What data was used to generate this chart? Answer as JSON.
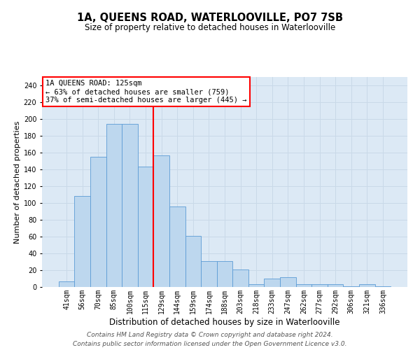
{
  "title": "1A, QUEENS ROAD, WATERLOOVILLE, PO7 7SB",
  "subtitle": "Size of property relative to detached houses in Waterlooville",
  "xlabel": "Distribution of detached houses by size in Waterlooville",
  "ylabel": "Number of detached properties",
  "categories": [
    "41sqm",
    "56sqm",
    "70sqm",
    "85sqm",
    "100sqm",
    "115sqm",
    "129sqm",
    "144sqm",
    "159sqm",
    "174sqm",
    "188sqm",
    "203sqm",
    "218sqm",
    "233sqm",
    "247sqm",
    "262sqm",
    "277sqm",
    "292sqm",
    "306sqm",
    "321sqm",
    "336sqm"
  ],
  "values": [
    7,
    108,
    155,
    194,
    194,
    143,
    157,
    96,
    61,
    31,
    31,
    21,
    3,
    10,
    12,
    3,
    3,
    3,
    1,
    3,
    1
  ],
  "bar_color": "#bdd7ee",
  "bar_edge_color": "#5b9bd5",
  "vline_color": "#ff0000",
  "vline_x_index": 5.5,
  "annotation_title": "1A QUEENS ROAD: 125sqm",
  "annotation_line1": "← 63% of detached houses are smaller (759)",
  "annotation_line2": "37% of semi-detached houses are larger (445) →",
  "annotation_box_edge_color": "#ff0000",
  "annotation_box_face_color": "#ffffff",
  "ylim": [
    0,
    250
  ],
  "yticks": [
    0,
    20,
    40,
    60,
    80,
    100,
    120,
    140,
    160,
    180,
    200,
    220,
    240
  ],
  "footer_line1": "Contains HM Land Registry data © Crown copyright and database right 2024.",
  "footer_line2": "Contains public sector information licensed under the Open Government Licence v3.0.",
  "grid_color": "#c9d9e8",
  "background_color": "#dce9f5",
  "title_fontsize": 10.5,
  "subtitle_fontsize": 8.5,
  "tick_fontsize": 7,
  "xlabel_fontsize": 8.5,
  "ylabel_fontsize": 8,
  "annotation_fontsize": 7.5,
  "footer_fontsize": 6.5
}
